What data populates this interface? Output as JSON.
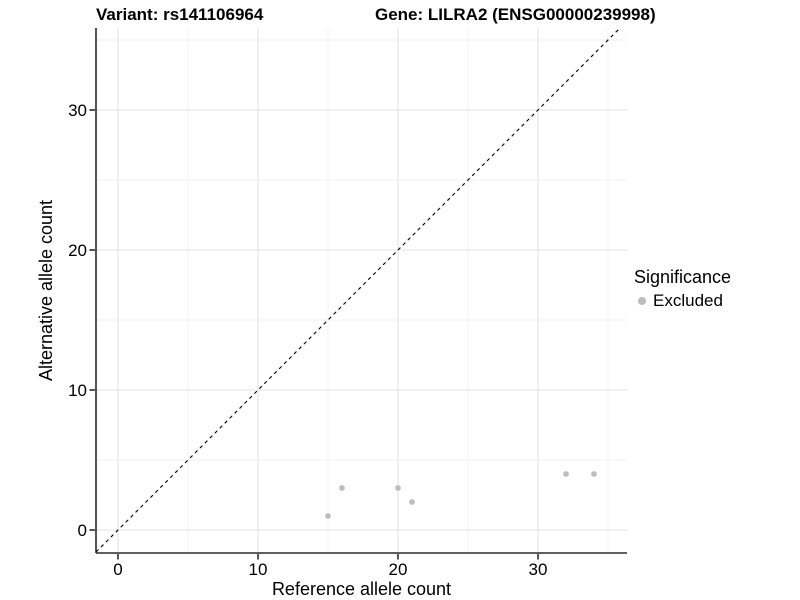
{
  "titles": {
    "variant": "Variant: rs141106964",
    "gene": "Gene: LILRA2 (ENSG00000239998)"
  },
  "legend": {
    "title": "Significance",
    "items": [
      {
        "label": "Excluded",
        "color": "#bdbdbd"
      }
    ]
  },
  "chart_data": {
    "type": "scatter",
    "xlabel": "Reference allele count",
    "ylabel": "Alternative allele count",
    "xlim": [
      -1.6,
      36.4
    ],
    "ylim": [
      -1.6,
      35.9
    ],
    "x_major_ticks": [
      0,
      10,
      20,
      30
    ],
    "y_major_ticks": [
      0,
      10,
      20,
      30
    ],
    "x_minor_gridlines": [
      5,
      15,
      25,
      35
    ],
    "y_minor_gridlines": [
      5,
      15,
      25,
      35
    ],
    "grid": true,
    "legend_position": "right",
    "series": [
      {
        "name": "Excluded",
        "color": "#bdbdbd",
        "points": [
          {
            "x": 15,
            "y": 1
          },
          {
            "x": 16,
            "y": 3
          },
          {
            "x": 20,
            "y": 3
          },
          {
            "x": 21,
            "y": 2
          },
          {
            "x": 32,
            "y": 4
          },
          {
            "x": 34,
            "y": 4
          }
        ]
      }
    ],
    "reference_line": {
      "type": "identity",
      "style": "dashed",
      "color": "#000000"
    }
  },
  "theme": {
    "background": "#ffffff",
    "grid_major_color": "#e4e4e4",
    "grid_minor_color": "#f2f2f2",
    "axis_line_color": "#2b2b2b",
    "text_color": "#000000",
    "point_color": "#bdbdbd"
  }
}
